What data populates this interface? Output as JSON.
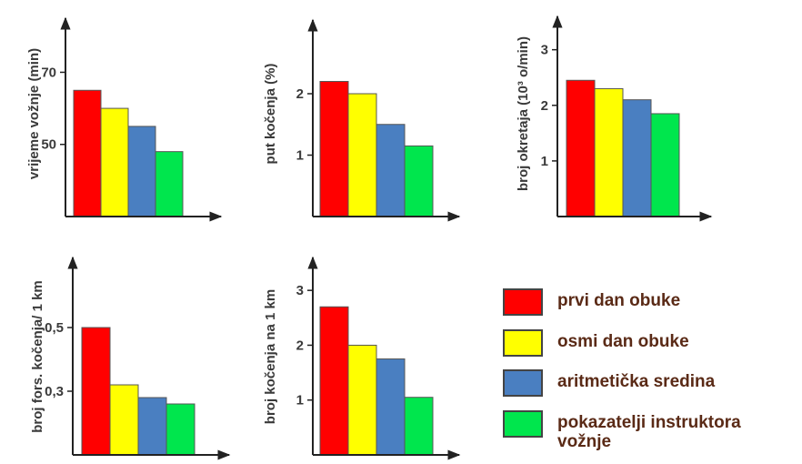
{
  "chart_data": [
    {
      "type": "bar",
      "ylabel": "vrijeme vožnje (min)",
      "yticks": [
        {
          "value": 50,
          "label": "50"
        },
        {
          "value": 70,
          "label": "70"
        }
      ],
      "ylim": [
        30,
        85
      ],
      "values": [
        65,
        60,
        55,
        48
      ]
    },
    {
      "type": "bar",
      "ylabel": "put kočenja (%)",
      "yticks": [
        {
          "value": 1,
          "label": "1"
        },
        {
          "value": 2,
          "label": "2"
        }
      ],
      "ylim": [
        0,
        3.2
      ],
      "values": [
        2.2,
        2.0,
        1.5,
        1.15
      ]
    },
    {
      "type": "bar",
      "ylabel": "broj okretaja (10³ o/min)",
      "yticks": [
        {
          "value": 1,
          "label": "1"
        },
        {
          "value": 2,
          "label": "2"
        },
        {
          "value": 3,
          "label": "3"
        }
      ],
      "ylim": [
        0,
        3.6
      ],
      "values": [
        2.45,
        2.3,
        2.1,
        1.85
      ]
    },
    {
      "type": "bar",
      "ylabel": "broj fors. kočenja/ 1 km",
      "yticks": [
        {
          "value": 0.3,
          "label": "0,3"
        },
        {
          "value": 0.5,
          "label": "0,5"
        }
      ],
      "ylim": [
        0.1,
        0.72
      ],
      "values": [
        0.5,
        0.32,
        0.28,
        0.26
      ]
    },
    {
      "type": "bar",
      "ylabel": "broj kočenja na 1 km",
      "yticks": [
        {
          "value": 1,
          "label": "1"
        },
        {
          "value": 2,
          "label": "2"
        },
        {
          "value": 3,
          "label": "3"
        }
      ],
      "ylim": [
        0,
        3.6
      ],
      "values": [
        2.7,
        2.0,
        1.75,
        1.05
      ]
    }
  ],
  "series_colors": [
    "#ff0000",
    "#ffff00",
    "#4a7fc1",
    "#00e64d"
  ],
  "legend": {
    "items": [
      {
        "label": "prvi dan obuke",
        "color": "#ff0000"
      },
      {
        "label": "osmi dan obuke",
        "color": "#ffff00"
      },
      {
        "label": "aritmetička sredina",
        "color": "#4a7fc1"
      },
      {
        "label": "pokazatelji instruktora vožnje",
        "color": "#00e64d"
      }
    ]
  }
}
